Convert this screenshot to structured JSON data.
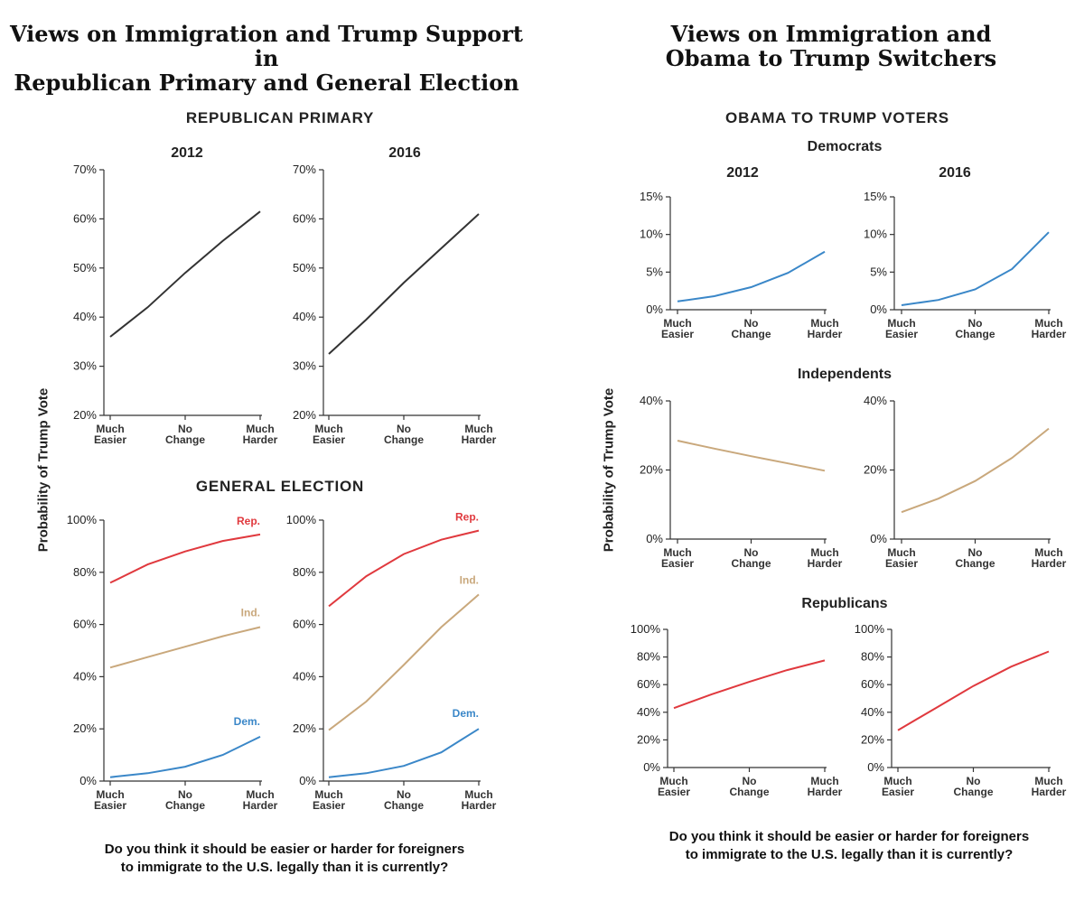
{
  "left": {
    "title_line1": "Views on Immigration and Trump Support in",
    "title_line2": "Republican Primary and General Election",
    "section_primary": "REPUBLICAN PRIMARY",
    "section_general": "GENERAL ELECTION",
    "year_2012": "2012",
    "year_2016": "2016",
    "ylabel": "Probability of Trump Vote",
    "question": "Do you think it should be easier or harder for foreigners to immigrate to the U.S. legally than it is currently?"
  },
  "right": {
    "title_line1": "Views on Immigration and",
    "title_line2": "Obama to Trump Switchers",
    "section": "OBAMA TO TRUMP VOTERS",
    "group_dem": "Democrats",
    "group_ind": "Independents",
    "group_rep": "Republicans",
    "year_2012": "2012",
    "year_2016": "2016",
    "ylabel": "Probability of Trump Vote",
    "question": "Do you think it should be easier or harder for foreigners to immigrate to the U.S. legally than it is currently?"
  },
  "colors": {
    "primary": "#333333",
    "rep": "#e0393e",
    "ind": "#c9a87c",
    "dem": "#3a87c8"
  },
  "x_ticks": [
    [
      "Much",
      "Easier"
    ],
    [
      "No",
      "Change"
    ],
    [
      "Much",
      "Harder"
    ]
  ],
  "chart_data": [
    {
      "type": "line",
      "id": "primary_2012",
      "x": [
        1,
        2,
        3,
        4,
        5
      ],
      "ylim": [
        0.2,
        0.7
      ],
      "yticks": [
        0.2,
        0.3,
        0.4,
        0.5,
        0.6,
        0.7
      ],
      "ytick_labels": [
        "20%",
        "30%",
        "40%",
        "50%",
        "60%",
        "70%"
      ],
      "series": [
        {
          "color": "primary",
          "values": [
            0.36,
            0.42,
            0.49,
            0.555,
            0.615
          ]
        }
      ]
    },
    {
      "type": "line",
      "id": "primary_2016",
      "x": [
        1,
        2,
        3,
        4,
        5
      ],
      "ylim": [
        0.2,
        0.7
      ],
      "yticks": [
        0.2,
        0.3,
        0.4,
        0.5,
        0.6,
        0.7
      ],
      "ytick_labels": [
        "20%",
        "30%",
        "40%",
        "50%",
        "60%",
        "70%"
      ],
      "series": [
        {
          "color": "primary",
          "values": [
            0.325,
            0.395,
            0.47,
            0.54,
            0.61
          ]
        }
      ]
    },
    {
      "type": "line",
      "id": "general_2012",
      "x": [
        1,
        2,
        3,
        4,
        5
      ],
      "ylim": [
        0,
        1
      ],
      "yticks": [
        0,
        0.2,
        0.4,
        0.6,
        0.8,
        1
      ],
      "ytick_labels": [
        "0%",
        "20%",
        "40%",
        "60%",
        "80%",
        "100%"
      ],
      "series": [
        {
          "name": "Rep.",
          "color": "rep",
          "values": [
            0.76,
            0.83,
            0.88,
            0.92,
            0.945
          ]
        },
        {
          "name": "Ind.",
          "color": "ind",
          "values": [
            0.435,
            0.475,
            0.515,
            0.555,
            0.59
          ]
        },
        {
          "name": "Dem.",
          "color": "dem",
          "values": [
            0.015,
            0.03,
            0.055,
            0.1,
            0.17
          ]
        }
      ]
    },
    {
      "type": "line",
      "id": "general_2016",
      "x": [
        1,
        2,
        3,
        4,
        5
      ],
      "ylim": [
        0,
        1
      ],
      "yticks": [
        0,
        0.2,
        0.4,
        0.6,
        0.8,
        1
      ],
      "ytick_labels": [
        "0%",
        "20%",
        "40%",
        "60%",
        "80%",
        "100%"
      ],
      "series": [
        {
          "name": "Rep.",
          "color": "rep",
          "values": [
            0.67,
            0.785,
            0.87,
            0.925,
            0.96
          ]
        },
        {
          "name": "Ind.",
          "color": "ind",
          "values": [
            0.195,
            0.305,
            0.445,
            0.59,
            0.715
          ]
        },
        {
          "name": "Dem.",
          "color": "dem",
          "values": [
            0.015,
            0.03,
            0.058,
            0.11,
            0.2
          ]
        }
      ]
    },
    {
      "type": "line",
      "id": "switch_dem_2012",
      "x": [
        1,
        2,
        3,
        4,
        5
      ],
      "ylim": [
        0,
        0.15
      ],
      "yticks": [
        0,
        0.05,
        0.1,
        0.15
      ],
      "ytick_labels": [
        "0%",
        "5%",
        "10%",
        "15%"
      ],
      "series": [
        {
          "color": "dem",
          "values": [
            0.011,
            0.018,
            0.03,
            0.049,
            0.077
          ]
        }
      ]
    },
    {
      "type": "line",
      "id": "switch_dem_2016",
      "x": [
        1,
        2,
        3,
        4,
        5
      ],
      "ylim": [
        0,
        0.15
      ],
      "yticks": [
        0,
        0.05,
        0.1,
        0.15
      ],
      "ytick_labels": [
        "0%",
        "5%",
        "10%",
        "15%"
      ],
      "series": [
        {
          "color": "dem",
          "values": [
            0.006,
            0.013,
            0.027,
            0.054,
            0.103
          ]
        }
      ]
    },
    {
      "type": "line",
      "id": "switch_ind_2012",
      "x": [
        1,
        2,
        3,
        4,
        5
      ],
      "ylim": [
        0,
        0.4
      ],
      "yticks": [
        0,
        0.2,
        0.4
      ],
      "ytick_labels": [
        "0%",
        "20%",
        "40%"
      ],
      "series": [
        {
          "color": "ind",
          "values": [
            0.285,
            0.262,
            0.24,
            0.219,
            0.198
          ]
        }
      ]
    },
    {
      "type": "line",
      "id": "switch_ind_2016",
      "x": [
        1,
        2,
        3,
        4,
        5
      ],
      "ylim": [
        0,
        0.4
      ],
      "yticks": [
        0,
        0.2,
        0.4
      ],
      "ytick_labels": [
        "0%",
        "20%",
        "40%"
      ],
      "series": [
        {
          "color": "ind",
          "values": [
            0.078,
            0.117,
            0.168,
            0.235,
            0.32
          ]
        }
      ]
    },
    {
      "type": "line",
      "id": "switch_rep_2012",
      "x": [
        1,
        2,
        3,
        4,
        5
      ],
      "ylim": [
        0,
        1
      ],
      "yticks": [
        0,
        0.2,
        0.4,
        0.6,
        0.8,
        1
      ],
      "ytick_labels": [
        "0%",
        "20%",
        "40%",
        "60%",
        "80%",
        "100%"
      ],
      "series": [
        {
          "color": "rep",
          "values": [
            0.43,
            0.53,
            0.62,
            0.705,
            0.775
          ]
        }
      ]
    },
    {
      "type": "line",
      "id": "switch_rep_2016",
      "x": [
        1,
        2,
        3,
        4,
        5
      ],
      "ylim": [
        0,
        1
      ],
      "yticks": [
        0,
        0.2,
        0.4,
        0.6,
        0.8,
        1
      ],
      "ytick_labels": [
        "0%",
        "20%",
        "40%",
        "60%",
        "80%",
        "100%"
      ],
      "series": [
        {
          "color": "rep",
          "values": [
            0.27,
            0.43,
            0.59,
            0.73,
            0.84
          ]
        }
      ]
    }
  ]
}
